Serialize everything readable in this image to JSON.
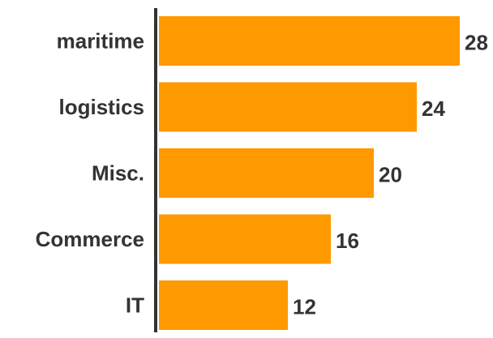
{
  "chart_data": {
    "type": "bar",
    "orientation": "horizontal",
    "categories": [
      "maritime",
      "logistics",
      "Misc.",
      "Commerce",
      "IT"
    ],
    "values": [
      28,
      24,
      20,
      16,
      12
    ],
    "title": "",
    "xlabel": "",
    "ylabel": "",
    "xlim": [
      0,
      28
    ],
    "grid": false,
    "legend": "none",
    "data_labels": true,
    "colors": {
      "bar": "#FF9900",
      "axis": "#333333",
      "label_text": "#333333"
    }
  }
}
